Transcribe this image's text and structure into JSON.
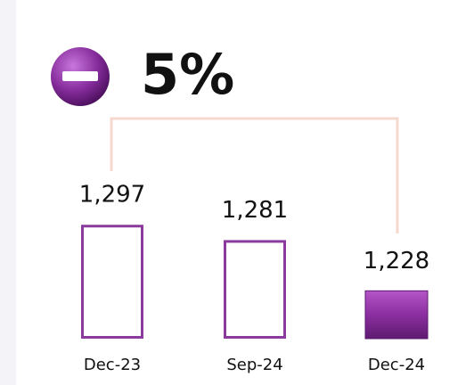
{
  "chart_data": {
    "type": "bar",
    "annotation": "5%",
    "categories": [
      "Dec-23",
      "Sep-24",
      "Dec-24"
    ],
    "values": [
      1297,
      1281,
      1228
    ],
    "value_labels": [
      "1,297",
      "1,281",
      "1,228"
    ],
    "color": "#8b3a9e",
    "filled": [
      false,
      false,
      true
    ],
    "ylim": [
      1178,
      1300
    ]
  }
}
